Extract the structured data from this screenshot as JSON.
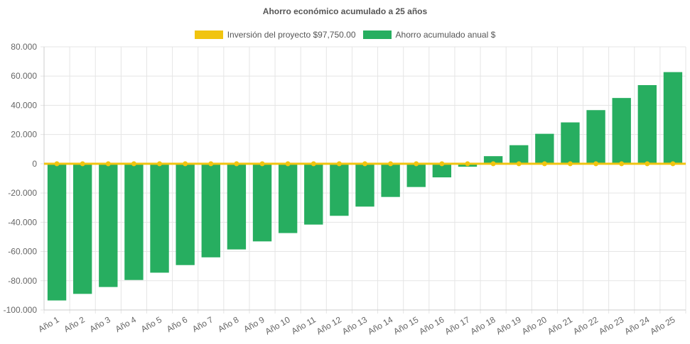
{
  "chart_data": {
    "type": "bar",
    "title": "Ahorro económico acumulado a 25 años",
    "categories": [
      "Año 1",
      "Año 2",
      "Año 3",
      "Año 4",
      "Año 5",
      "Año 6",
      "Año 7",
      "Año 8",
      "Año 9",
      "Año 10",
      "Año 11",
      "Año 12",
      "Año 13",
      "Año 14",
      "Año 15",
      "Año 16",
      "Año 17",
      "Año 18",
      "Año 19",
      "Año 20",
      "Año 21",
      "Año 22",
      "Año 23",
      "Año 24",
      "Año 25"
    ],
    "series": [
      {
        "name": "Inversión del proyecto $97,750.00",
        "type": "line",
        "color": "#f1c40f",
        "values": [
          0,
          0,
          0,
          0,
          0,
          0,
          0,
          0,
          0,
          0,
          0,
          0,
          0,
          0,
          0,
          0,
          0,
          0,
          0,
          0,
          0,
          0,
          0,
          0,
          0
        ]
      },
      {
        "name": "Ahorro acumulado anual $",
        "type": "bar",
        "color": "#27ae60",
        "values": [
          -93500,
          -89000,
          -84300,
          -79500,
          -74500,
          -69300,
          -64000,
          -58600,
          -53100,
          -47400,
          -41600,
          -35600,
          -29300,
          -22700,
          -15900,
          -9300,
          -2000,
          5200,
          12700,
          20500,
          28300,
          36700,
          45000,
          53800,
          62700
        ]
      }
    ],
    "ylim": [
      -100000,
      80000
    ],
    "yticks": [
      "80.000",
      "60.000",
      "40.000",
      "20.000",
      "0",
      "-20.000",
      "-40.000",
      "-60.000",
      "-80.000",
      "-100.000"
    ],
    "ytick_values": [
      80000,
      60000,
      40000,
      20000,
      0,
      -20000,
      -40000,
      -60000,
      -80000,
      -100000
    ],
    "xlabel": "",
    "ylabel": "",
    "grid": true,
    "legend_position": "top-center"
  }
}
